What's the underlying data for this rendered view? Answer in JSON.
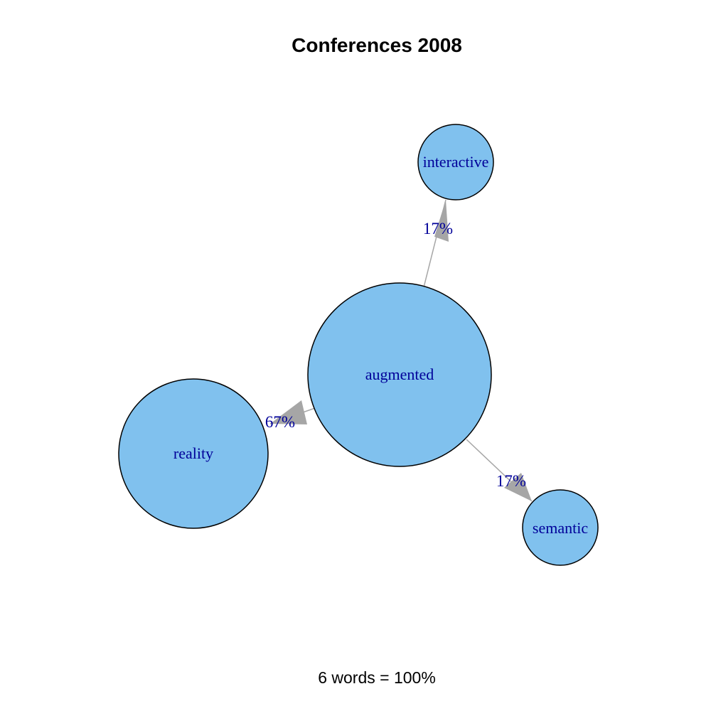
{
  "title": "Conferences 2008",
  "caption": "6 words = 100%",
  "colors": {
    "node_fill": "#80c1ee",
    "node_stroke": "#000000",
    "edge": "#a6a6a6",
    "label": "#000099"
  },
  "nodes": [
    {
      "id": "augmented",
      "label": "augmented"
    },
    {
      "id": "interactive",
      "label": "interactive"
    },
    {
      "id": "reality",
      "label": "reality"
    },
    {
      "id": "semantic",
      "label": "semantic"
    }
  ],
  "edges": [
    {
      "from": "augmented",
      "to": "interactive",
      "label": "17%"
    },
    {
      "from": "augmented",
      "to": "reality",
      "label": "67%"
    },
    {
      "from": "augmented",
      "to": "semantic",
      "label": "17%"
    }
  ]
}
